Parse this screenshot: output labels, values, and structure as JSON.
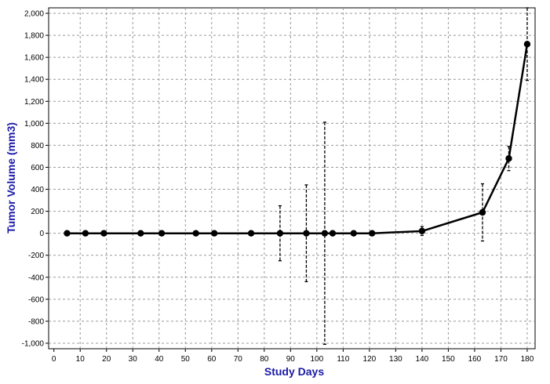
{
  "chart_data": {
    "type": "line",
    "title": "",
    "xlabel": "Study Days",
    "ylabel": "Tumor Volume (mm3)",
    "xlim": [
      -2,
      183
    ],
    "ylim": [
      -1050,
      2050
    ],
    "x_ticks": [
      0,
      10,
      20,
      30,
      40,
      50,
      60,
      70,
      80,
      90,
      100,
      110,
      120,
      130,
      140,
      150,
      160,
      170,
      180
    ],
    "y_ticks": [
      -1000,
      -800,
      -600,
      -400,
      -200,
      0,
      200,
      400,
      600,
      800,
      1000,
      1200,
      1400,
      1600,
      1800,
      2000
    ],
    "x_tick_labels": [
      "0",
      "10",
      "20",
      "30",
      "40",
      "50",
      "60",
      "70",
      "80",
      "90",
      "100",
      "110",
      "120",
      "130",
      "140",
      "150",
      "160",
      "170",
      "180"
    ],
    "y_tick_labels": [
      "-1,000",
      "-800",
      "-600",
      "-400",
      "-200",
      "0",
      "200",
      "400",
      "600",
      "800",
      "1,000",
      "1,200",
      "1,400",
      "1,600",
      "1,800",
      "2,000"
    ],
    "grid": true,
    "legend": "none",
    "colors": {
      "line": "#000000",
      "axis_title": "#1a1aa8",
      "grid": "#999999"
    },
    "series": [
      {
        "x": [
          5,
          12,
          19,
          33,
          41,
          54,
          61,
          75,
          86,
          96,
          103,
          106,
          114,
          121,
          140,
          163,
          173,
          180
        ],
        "y": [
          0,
          0,
          0,
          0,
          0,
          0,
          0,
          0,
          0,
          0,
          0,
          0,
          0,
          0,
          20,
          190,
          680,
          1720
        ],
        "error": [
          0,
          0,
          0,
          0,
          0,
          0,
          0,
          0,
          250,
          440,
          1010,
          0,
          0,
          0,
          40,
          260,
          110,
          330
        ]
      }
    ]
  }
}
